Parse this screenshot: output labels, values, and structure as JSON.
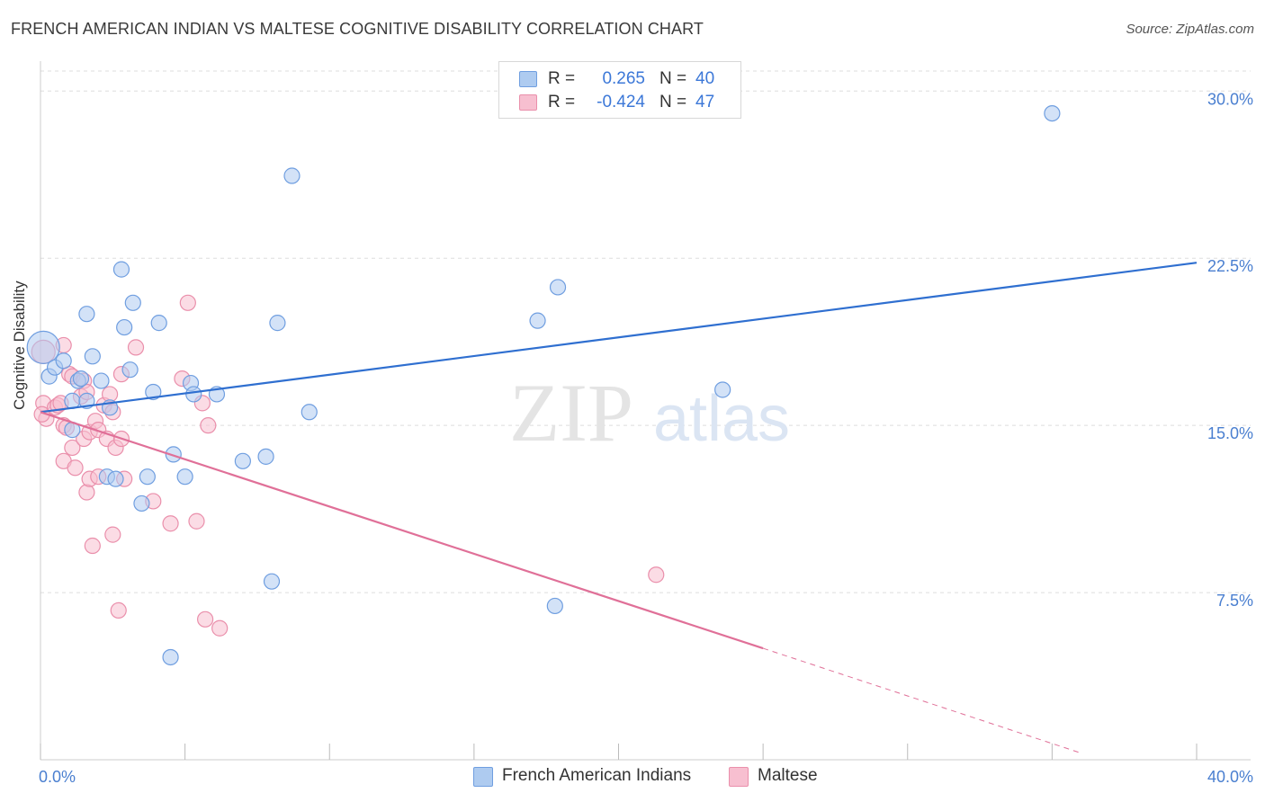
{
  "header": {
    "title": "FRENCH AMERICAN INDIAN VS MALTESE COGNITIVE DISABILITY CORRELATION CHART",
    "source": "Source: ZipAtlas.com"
  },
  "watermark": {
    "zip": "ZIP",
    "atlas": "atlas"
  },
  "legend": {
    "r_label": "R =",
    "n_label": "N =",
    "series": [
      {
        "name": "French American Indians",
        "r": "0.265",
        "n": "40",
        "fill": "#aecbf0",
        "stroke": "#6f9ee0"
      },
      {
        "name": "Maltese",
        "r": "-0.424",
        "n": "47",
        "fill": "#f7bfd0",
        "stroke": "#ea8fab"
      }
    ]
  },
  "colors": {
    "blue_line": "#2f6fd0",
    "pink_line": "#e07098",
    "tick_label": "#4a7fd0",
    "grid": "#dddddd"
  },
  "chart_data": {
    "type": "scatter",
    "title": "FRENCH AMERICAN INDIAN VS MALTESE COGNITIVE DISABILITY CORRELATION CHART",
    "xlabel": "",
    "ylabel": "Cognitive Disability",
    "xlim": [
      0,
      40
    ],
    "ylim": [
      0,
      30.9
    ],
    "x_tick_labels": [
      {
        "value": 0,
        "label": "0.0%"
      },
      {
        "value": 40,
        "label": "40.0%"
      }
    ],
    "y_tick_labels": [
      {
        "value": 7.5,
        "label": "7.5%"
      },
      {
        "value": 15,
        "label": "15.0%"
      },
      {
        "value": 22.5,
        "label": "22.5%"
      },
      {
        "value": 30,
        "label": "30.0%"
      }
    ],
    "grid": true,
    "series": [
      {
        "name": "French American Indians",
        "points": [
          [
            0.1,
            18.5
          ],
          [
            0.3,
            17.2
          ],
          [
            0.5,
            17.6
          ],
          [
            0.8,
            17.9
          ],
          [
            1.1,
            16.1
          ],
          [
            1.1,
            14.8
          ],
          [
            1.3,
            17.0
          ],
          [
            1.4,
            17.1
          ],
          [
            1.6,
            20.0
          ],
          [
            1.6,
            16.1
          ],
          [
            1.8,
            18.1
          ],
          [
            2.1,
            17.0
          ],
          [
            2.3,
            12.7
          ],
          [
            2.4,
            15.8
          ],
          [
            2.6,
            12.6
          ],
          [
            2.8,
            22.0
          ],
          [
            2.9,
            19.4
          ],
          [
            3.1,
            17.5
          ],
          [
            3.2,
            20.5
          ],
          [
            3.5,
            11.5
          ],
          [
            3.7,
            12.7
          ],
          [
            3.9,
            16.5
          ],
          [
            4.1,
            19.6
          ],
          [
            4.6,
            13.7
          ],
          [
            4.5,
            4.6
          ],
          [
            5.0,
            12.7
          ],
          [
            5.2,
            16.9
          ],
          [
            5.3,
            16.4
          ],
          [
            6.1,
            16.4
          ],
          [
            7.0,
            13.4
          ],
          [
            7.8,
            13.6
          ],
          [
            8.0,
            8.0
          ],
          [
            8.2,
            19.6
          ],
          [
            8.7,
            26.2
          ],
          [
            9.3,
            15.6
          ],
          [
            17.2,
            19.7
          ],
          [
            17.9,
            21.2
          ],
          [
            17.8,
            6.9
          ],
          [
            23.6,
            16.6
          ],
          [
            35.0,
            29.0
          ]
        ]
      },
      {
        "name": "Maltese",
        "points": [
          [
            0.1,
            18.3
          ],
          [
            0.1,
            16.0
          ],
          [
            0.2,
            15.3
          ],
          [
            0.5,
            15.8
          ],
          [
            0.6,
            15.9
          ],
          [
            0.7,
            16.0
          ],
          [
            0.8,
            13.4
          ],
          [
            0.8,
            15.0
          ],
          [
            0.8,
            18.6
          ],
          [
            0.9,
            14.9
          ],
          [
            1.0,
            17.3
          ],
          [
            1.1,
            17.2
          ],
          [
            1.1,
            14.0
          ],
          [
            1.2,
            13.1
          ],
          [
            1.4,
            16.3
          ],
          [
            1.5,
            14.4
          ],
          [
            1.5,
            17.0
          ],
          [
            1.6,
            16.5
          ],
          [
            1.6,
            12.0
          ],
          [
            1.7,
            12.6
          ],
          [
            1.7,
            14.7
          ],
          [
            1.8,
            9.6
          ],
          [
            1.9,
            15.2
          ],
          [
            2.0,
            14.8
          ],
          [
            2.0,
            12.7
          ],
          [
            2.2,
            15.9
          ],
          [
            2.3,
            14.4
          ],
          [
            2.4,
            16.4
          ],
          [
            2.5,
            15.6
          ],
          [
            2.5,
            10.1
          ],
          [
            2.6,
            14.0
          ],
          [
            2.7,
            6.7
          ],
          [
            2.8,
            17.3
          ],
          [
            2.8,
            14.4
          ],
          [
            2.9,
            12.6
          ],
          [
            3.3,
            18.5
          ],
          [
            3.9,
            11.6
          ],
          [
            4.5,
            10.6
          ],
          [
            4.9,
            17.1
          ],
          [
            5.1,
            20.5
          ],
          [
            5.4,
            10.7
          ],
          [
            5.6,
            16.0
          ],
          [
            5.7,
            6.3
          ],
          [
            5.8,
            15.0
          ],
          [
            6.2,
            5.9
          ],
          [
            21.3,
            8.3
          ],
          [
            0.05,
            15.5
          ]
        ]
      }
    ],
    "trend_lines": [
      {
        "series": "French American Indians",
        "from": [
          0,
          15.6
        ],
        "to": [
          40,
          22.3
        ],
        "style": "solid"
      },
      {
        "series": "Maltese",
        "from": [
          0,
          15.6
        ],
        "to": [
          25,
          5.0
        ],
        "style": "solid"
      },
      {
        "series": "Maltese",
        "from": [
          25,
          5.0
        ],
        "to": [
          36,
          0.3
        ],
        "style": "dashed"
      }
    ]
  }
}
